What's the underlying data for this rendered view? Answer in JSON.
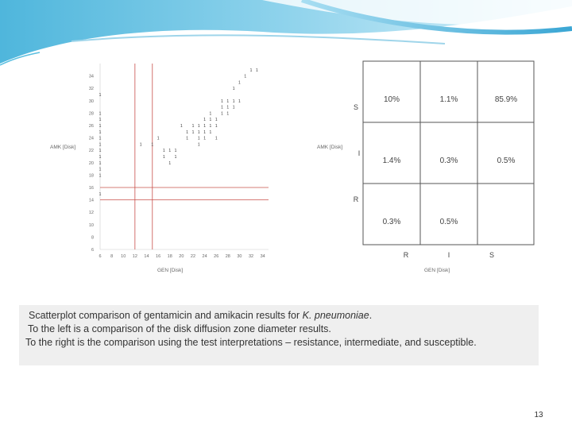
{
  "chart_data": [
    {
      "type": "scatter",
      "xlabel": "GEN [Disk]",
      "ylabel": "AMK [Disk]",
      "x_ticks": [
        "6",
        "8",
        "10",
        "12",
        "14",
        "16",
        "18",
        "20",
        "22",
        "24",
        "26",
        "28",
        "30",
        "32",
        "34"
      ],
      "y_ticks": [
        "6",
        "8",
        "10",
        "12",
        "14",
        "16",
        "18",
        "20",
        "22",
        "24",
        "26",
        "28",
        "30",
        "32",
        "34"
      ],
      "xlim": [
        6,
        35
      ],
      "ylim": [
        6,
        36
      ],
      "breakpoints_x": [
        12,
        15
      ],
      "breakpoints_y": [
        14,
        16
      ],
      "point_glyph": "1",
      "points": [
        {
          "x": 6,
          "y": 28
        },
        {
          "x": 6,
          "y": 27
        },
        {
          "x": 6,
          "y": 26
        },
        {
          "x": 6,
          "y": 25
        },
        {
          "x": 6,
          "y": 24
        },
        {
          "x": 6,
          "y": 23
        },
        {
          "x": 6,
          "y": 22
        },
        {
          "x": 6,
          "y": 21
        },
        {
          "x": 6,
          "y": 20
        },
        {
          "x": 6,
          "y": 19
        },
        {
          "x": 6,
          "y": 18
        },
        {
          "x": 6,
          "y": 15
        },
        {
          "x": 6,
          "y": 31
        },
        {
          "x": 13,
          "y": 23
        },
        {
          "x": 15,
          "y": 23
        },
        {
          "x": 16,
          "y": 24
        },
        {
          "x": 17,
          "y": 22
        },
        {
          "x": 17,
          "y": 21
        },
        {
          "x": 18,
          "y": 22
        },
        {
          "x": 18,
          "y": 20
        },
        {
          "x": 19,
          "y": 21
        },
        {
          "x": 19,
          "y": 22
        },
        {
          "x": 20,
          "y": 26
        },
        {
          "x": 21,
          "y": 24
        },
        {
          "x": 21,
          "y": 25
        },
        {
          "x": 22,
          "y": 25
        },
        {
          "x": 22,
          "y": 26
        },
        {
          "x": 23,
          "y": 24
        },
        {
          "x": 23,
          "y": 25
        },
        {
          "x": 23,
          "y": 26
        },
        {
          "x": 23,
          "y": 23
        },
        {
          "x": 24,
          "y": 26
        },
        {
          "x": 24,
          "y": 25
        },
        {
          "x": 24,
          "y": 24
        },
        {
          "x": 24,
          "y": 27
        },
        {
          "x": 25,
          "y": 27
        },
        {
          "x": 25,
          "y": 26
        },
        {
          "x": 25,
          "y": 25
        },
        {
          "x": 25,
          "y": 28
        },
        {
          "x": 26,
          "y": 26
        },
        {
          "x": 26,
          "y": 24
        },
        {
          "x": 26,
          "y": 27
        },
        {
          "x": 27,
          "y": 28
        },
        {
          "x": 27,
          "y": 30
        },
        {
          "x": 27,
          "y": 29
        },
        {
          "x": 28,
          "y": 29
        },
        {
          "x": 28,
          "y": 30
        },
        {
          "x": 28,
          "y": 28
        },
        {
          "x": 29,
          "y": 30
        },
        {
          "x": 29,
          "y": 29
        },
        {
          "x": 30,
          "y": 30
        },
        {
          "x": 31,
          "y": 34
        },
        {
          "x": 32,
          "y": 35
        },
        {
          "x": 33,
          "y": 35
        },
        {
          "x": 29,
          "y": 32
        },
        {
          "x": 30,
          "y": 33
        }
      ]
    },
    {
      "type": "table",
      "xlabel": "GEN [Disk]",
      "ylabel": "AMK [Disk]",
      "col_labels": [
        "R",
        "I",
        "S"
      ],
      "row_labels": [
        "S",
        "I",
        "R"
      ],
      "cells": [
        [
          "10%",
          "1.1%",
          "85.9%"
        ],
        [
          "1.4%",
          "0.3%",
          "0.5%"
        ],
        [
          "0.3%",
          "0.5%",
          ""
        ]
      ]
    }
  ],
  "caption": {
    "line1_prefix": "Scatterplot comparison of gentamicin and amikacin results for ",
    "line1_italic": "K. pneumoniae",
    "line1_suffix": ".",
    "line2": "To the left is a comparison of the disk diffusion zone diameter results.",
    "line3": "To the right is the comparison using the test interpretations – resistance, intermediate, and susceptible."
  },
  "page_number": "13",
  "colors": {
    "breakpoint_line": "#c8504a",
    "banner_blue": "#5bbfe0",
    "caption_bg": "#efefef"
  }
}
